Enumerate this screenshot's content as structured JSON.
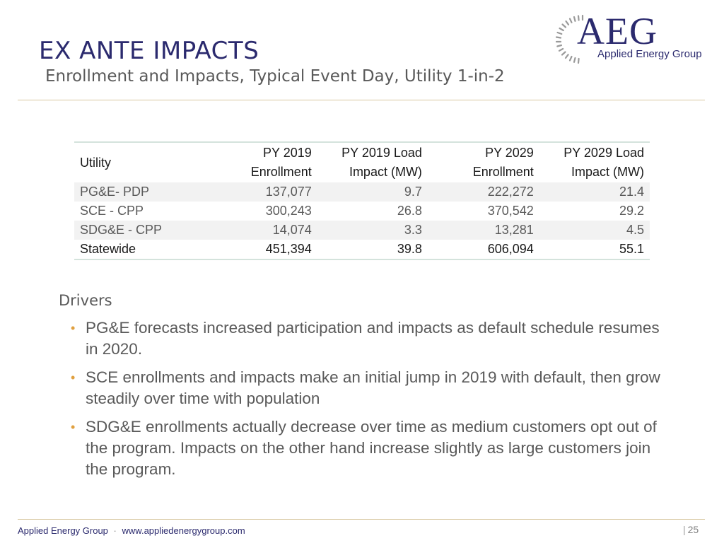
{
  "header": {
    "title": "EX ANTE IMPACTS",
    "subtitle": "Enrollment and Impacts, Typical Event Day, Utility 1-in-2"
  },
  "logo": {
    "text": "AEG",
    "subtext": "Applied Energy Group"
  },
  "table": {
    "headers": [
      "Utility",
      "PY 2019 Enrollment",
      "PY 2019 Load Impact (MW)",
      "PY 2029 Enrollment",
      "PY 2029 Load Impact (MW)"
    ],
    "rows": [
      [
        "PG&E- PDP",
        "137,077",
        "9.7",
        "222,272",
        "21.4"
      ],
      [
        "SCE - CPP",
        "300,243",
        "26.8",
        "370,542",
        "29.2"
      ],
      [
        "SDG&E - CPP",
        "14,074",
        "3.3",
        "13,281",
        "4.5"
      ],
      [
        "Statewide",
        "451,394",
        "39.8",
        "606,094",
        "55.1"
      ]
    ]
  },
  "drivers": {
    "heading": "Drivers",
    "items": [
      "PG&E forecasts increased participation and impacts as default schedule resumes in 2020.",
      "SCE enrollments and impacts make an initial jump in 2019 with default, then grow steadily over time with population",
      "SDG&E enrollments actually decrease over time as medium customers opt out of the program. Impacts on the other hand increase slightly as large customers join the program."
    ]
  },
  "footer": {
    "company": "Applied Energy Group",
    "separator": "·",
    "website": "www.appliedenergygroup.com",
    "page_number": "25"
  },
  "colors": {
    "title": "#2b2a6e",
    "text": "#595959",
    "bullet": "#e0a040",
    "rule": "#d8c7a0",
    "table_border": "#d4e3dc"
  }
}
